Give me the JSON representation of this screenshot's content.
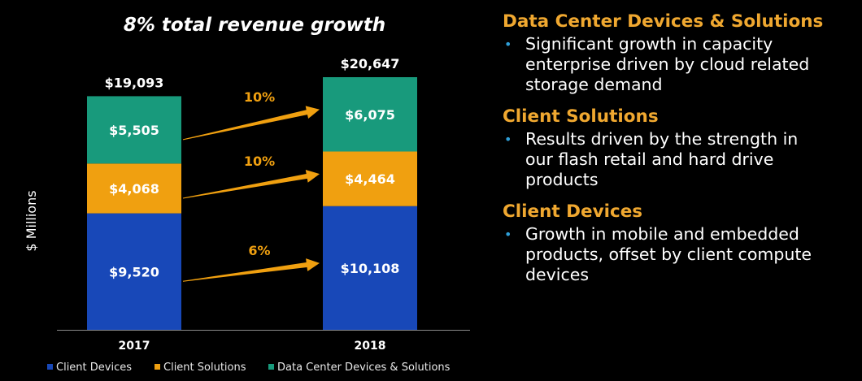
{
  "chart_data": {
    "type": "bar",
    "stacked": true,
    "title": "8% total revenue growth",
    "ylabel": "$ Millions",
    "categories": [
      "2017",
      "2018"
    ],
    "totals": [
      "$19,093",
      "$20,647"
    ],
    "series": [
      {
        "name": "Client Devices",
        "values": [
          9520,
          10108
        ],
        "labels": [
          "$9,520",
          "$10,108"
        ],
        "color": "#1848b8",
        "growth": "6%"
      },
      {
        "name": "Client Solutions",
        "values": [
          4068,
          4464
        ],
        "labels": [
          "$4,068",
          "$4,464"
        ],
        "color": "#f0a010",
        "growth": "10%"
      },
      {
        "name": "Data Center Devices & Solutions",
        "values": [
          5505,
          6075
        ],
        "labels": [
          "$5,505",
          "$6,075"
        ],
        "color": "#189a7c",
        "growth": "10%"
      }
    ],
    "legend_position": "bottom",
    "grid": false
  },
  "colors": {
    "accent": "#f0a830",
    "bullet": "#2f9fd8",
    "arrow": "#f0a010"
  },
  "sections": [
    {
      "title": "Data Center Devices & Solutions",
      "lines": [
        "Significant growth in capacity",
        "enterprise driven by cloud related",
        "storage demand"
      ]
    },
    {
      "title": "Client Solutions",
      "lines": [
        "Results driven by the strength in",
        "our flash retail and hard drive",
        "products"
      ]
    },
    {
      "title": "Client Devices",
      "lines": [
        "Growth in mobile and embedded",
        "products, offset by client compute",
        "devices"
      ]
    }
  ]
}
